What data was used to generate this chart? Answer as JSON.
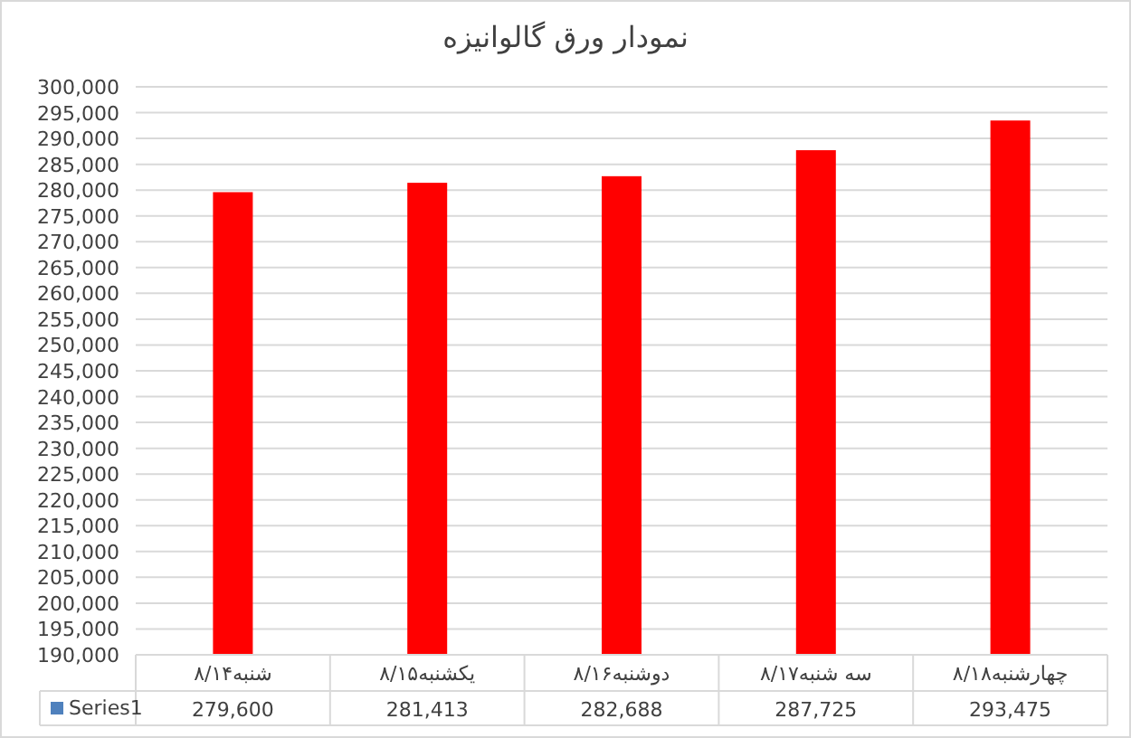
{
  "chart_data": {
    "type": "bar",
    "title": "نمودار ورق گالوانیزه",
    "categories": [
      "شنبه۸/۱۴",
      "یکشنبه۸/۱۵",
      "دوشنبه۸/۱۶",
      "سه شنبه۸/۱۷",
      "چهارشنبه۸/۱۸"
    ],
    "series": [
      {
        "name": "Series1",
        "color": "#ff0000",
        "values": [
          279600,
          281413,
          282688,
          287725,
          293475
        ],
        "value_labels": [
          "279,600",
          "281,413",
          "282,688",
          "287,725",
          "293,475"
        ]
      }
    ],
    "ylim": [
      190000,
      300000
    ],
    "yticks": [
      {
        "value": 190000,
        "label": "190,000"
      },
      {
        "value": 195000,
        "label": "195,000"
      },
      {
        "value": 200000,
        "label": "200,000"
      },
      {
        "value": 205000,
        "label": "205,000"
      },
      {
        "value": 210000,
        "label": "210,000"
      },
      {
        "value": 215000,
        "label": "215,000"
      },
      {
        "value": 220000,
        "label": "220,000"
      },
      {
        "value": 225000,
        "label": "225,000"
      },
      {
        "value": 230000,
        "label": "230,000"
      },
      {
        "value": 235000,
        "label": "235,000"
      },
      {
        "value": 240000,
        "label": "240,000"
      },
      {
        "value": 245000,
        "label": "245,000"
      },
      {
        "value": 250000,
        "label": "250,000"
      },
      {
        "value": 255000,
        "label": "255,000"
      },
      {
        "value": 260000,
        "label": "260,000"
      },
      {
        "value": 265000,
        "label": "265,000"
      },
      {
        "value": 270000,
        "label": "270,000"
      },
      {
        "value": 275000,
        "label": "275,000"
      },
      {
        "value": 280000,
        "label": "280,000"
      },
      {
        "value": 285000,
        "label": "285,000"
      },
      {
        "value": 290000,
        "label": "290,000"
      },
      {
        "value": 295000,
        "label": "295,000"
      },
      {
        "value": 300000,
        "label": "300,000"
      }
    ],
    "grid": "y",
    "legend": "bottom left"
  }
}
